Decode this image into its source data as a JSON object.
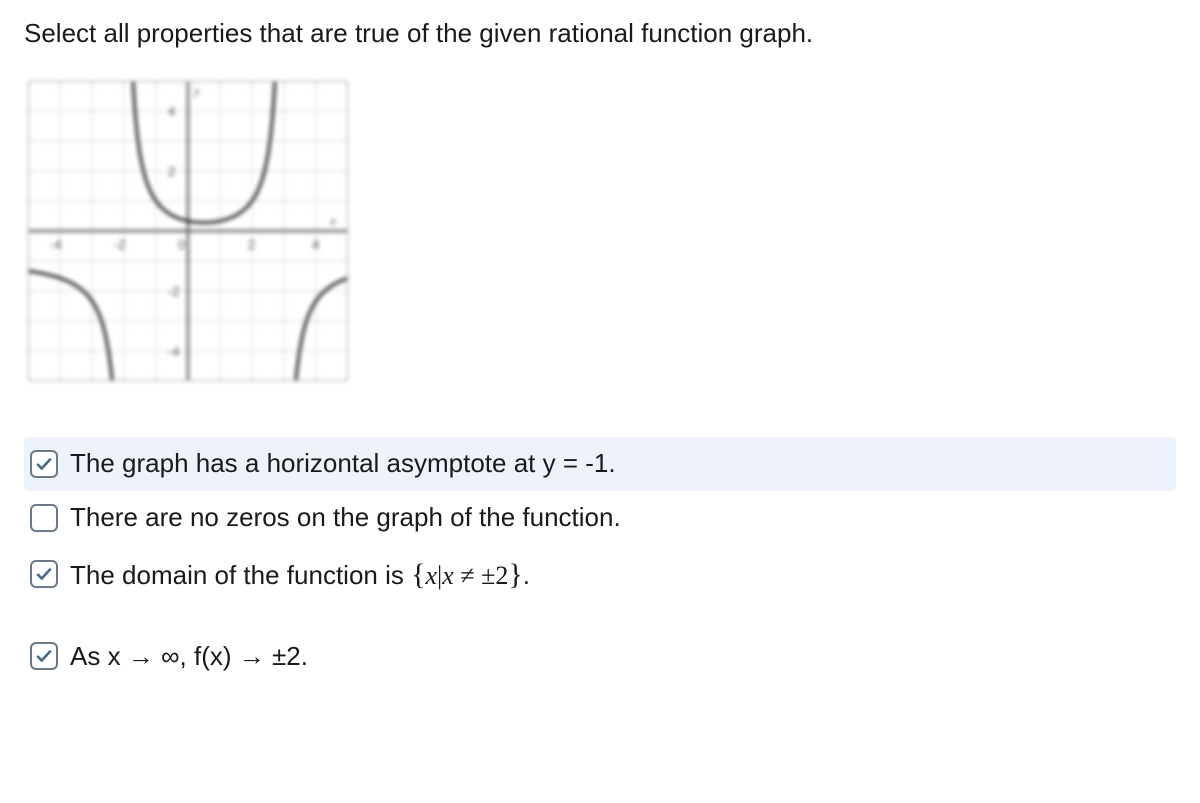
{
  "instruction": "Select all properties that are true of the given rational function graph.",
  "graph": {
    "xlim": [
      -5,
      5
    ],
    "ylim": [
      -5,
      5
    ],
    "xtick_step": 1,
    "ytick_step": 1,
    "tick_labels_x": [
      "-4",
      "-2",
      "0",
      "2",
      "4"
    ],
    "tick_labels_y": [
      "4",
      "2",
      "-2",
      "-4"
    ],
    "x_axis_label": "x",
    "y_axis_label": "y",
    "background_color": "#ffffff",
    "grid_color": "#b5b5b5",
    "axis_color": "#606060",
    "curve_color": "#2a2a2a",
    "curve_width": 3,
    "asymptotes_vertical": [
      -2,
      3
    ],
    "horizontal_asymptote": -1,
    "tick_fontsize": 13
  },
  "options": [
    {
      "label_plain": "The graph has a horizontal asymptote at y = -1.",
      "checked": true,
      "highlight": true
    },
    {
      "label_plain": "There are no zeros on the graph of the function.",
      "checked": false,
      "highlight": false
    },
    {
      "label_html": "The domain of the function is <span class='math'><span class='set'>{</span><span class='var'>x</span>|<span class='var'>x</span> ≠ ±2<span class='set'>}</span></span>.",
      "checked": true,
      "highlight": false
    },
    {
      "label_plain": "As x → ∞, f(x) → ±2.",
      "checked": true,
      "highlight": false,
      "spaced_before": true
    }
  ],
  "checkmark_color": "#4a6a8a"
}
